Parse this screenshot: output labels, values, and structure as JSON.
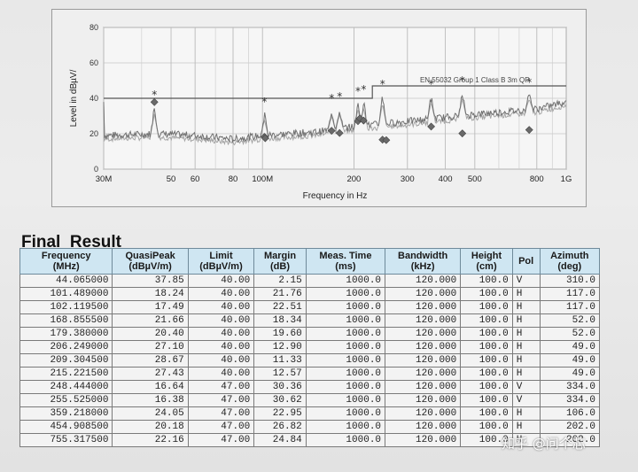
{
  "chart_data": {
    "type": "line",
    "xlabel": "Frequency in Hz",
    "ylabel": "Level in dBµV/",
    "x_scale": "log",
    "xlim": [
      30,
      1000
    ],
    "ylim": [
      0,
      80
    ],
    "y_ticks": [
      "0",
      "20",
      "40",
      "60",
      "80"
    ],
    "x_tick_labels": [
      {
        "label": "30M",
        "mhz": 30
      },
      {
        "label": "50",
        "mhz": 50
      },
      {
        "label": "60",
        "mhz": 60
      },
      {
        "label": "80",
        "mhz": 80
      },
      {
        "label": "100M",
        "mhz": 100
      },
      {
        "label": "200",
        "mhz": 200
      },
      {
        "label": "300",
        "mhz": 300
      },
      {
        "label": "400",
        "mhz": 400
      },
      {
        "label": "500",
        "mhz": 500
      },
      {
        "label": "800",
        "mhz": 800
      },
      {
        "label": "1G",
        "mhz": 1000
      }
    ],
    "limit_label": "EN 55032 Group 1 Class B 3m QP",
    "limit_line": [
      [
        30,
        40
      ],
      [
        230,
        40
      ],
      [
        230,
        47
      ],
      [
        1000,
        47
      ]
    ],
    "grid": true,
    "noise_floor": [
      [
        30,
        19
      ],
      [
        45,
        20
      ],
      [
        60,
        19
      ],
      [
        80,
        17
      ],
      [
        100,
        19
      ],
      [
        150,
        21
      ],
      [
        200,
        24
      ],
      [
        300,
        27
      ],
      [
        500,
        31
      ],
      [
        800,
        34
      ],
      [
        1000,
        38
      ]
    ],
    "peaks": [
      {
        "mhz": 44.065,
        "level": 38
      },
      {
        "mhz": 101.489,
        "level": 34
      },
      {
        "mhz": 168.855,
        "level": 36
      },
      {
        "mhz": 179.38,
        "level": 37
      },
      {
        "mhz": 206.249,
        "level": 40
      },
      {
        "mhz": 215.2215,
        "level": 41
      },
      {
        "mhz": 248.444,
        "level": 44
      },
      {
        "mhz": 359.218,
        "level": 44
      },
      {
        "mhz": 454.9085,
        "level": 46
      },
      {
        "mhz": 755.3175,
        "level": 45
      }
    ]
  },
  "results": {
    "title": "Final_Result",
    "headers": [
      [
        "Frequency",
        "(MHz)"
      ],
      [
        "QuasiPeak",
        "(dBµV/m)"
      ],
      [
        "Limit",
        "(dBµV/m)"
      ],
      [
        "Margin",
        "(dB)"
      ],
      [
        "Meas. Time",
        "(ms)"
      ],
      [
        "Bandwidth",
        "(kHz)"
      ],
      [
        "Height",
        "(cm)"
      ],
      [
        "Pol",
        ""
      ],
      [
        "Azimuth",
        "(deg)"
      ]
    ],
    "rows": [
      [
        "44.065000",
        "37.85",
        "40.00",
        "2.15",
        "1000.0",
        "120.000",
        "100.0",
        "V",
        "310.0"
      ],
      [
        "101.489000",
        "18.24",
        "40.00",
        "21.76",
        "1000.0",
        "120.000",
        "100.0",
        "H",
        "117.0"
      ],
      [
        "102.119500",
        "17.49",
        "40.00",
        "22.51",
        "1000.0",
        "120.000",
        "100.0",
        "H",
        "117.0"
      ],
      [
        "168.855500",
        "21.66",
        "40.00",
        "18.34",
        "1000.0",
        "120.000",
        "100.0",
        "H",
        "52.0"
      ],
      [
        "179.380000",
        "20.40",
        "40.00",
        "19.60",
        "1000.0",
        "120.000",
        "100.0",
        "H",
        "52.0"
      ],
      [
        "206.249000",
        "27.10",
        "40.00",
        "12.90",
        "1000.0",
        "120.000",
        "100.0",
        "H",
        "49.0"
      ],
      [
        "209.304500",
        "28.67",
        "40.00",
        "11.33",
        "1000.0",
        "120.000",
        "100.0",
        "H",
        "49.0"
      ],
      [
        "215.221500",
        "27.43",
        "40.00",
        "12.57",
        "1000.0",
        "120.000",
        "100.0",
        "H",
        "49.0"
      ],
      [
        "248.444000",
        "16.64",
        "47.00",
        "30.36",
        "1000.0",
        "120.000",
        "100.0",
        "V",
        "334.0"
      ],
      [
        "255.525000",
        "16.38",
        "47.00",
        "30.62",
        "1000.0",
        "120.000",
        "100.0",
        "V",
        "334.0"
      ],
      [
        "359.218000",
        "24.05",
        "47.00",
        "22.95",
        "1000.0",
        "120.000",
        "100.0",
        "H",
        "106.0"
      ],
      [
        "454.908500",
        "20.18",
        "47.00",
        "26.82",
        "1000.0",
        "120.000",
        "100.0",
        "H",
        "202.0"
      ],
      [
        "755.317500",
        "22.16",
        "47.00",
        "24.84",
        "1000.0",
        "120.000",
        "100.0",
        "H",
        "202.0"
      ]
    ]
  },
  "watermark": "知乎 @问个芯",
  "colors": {
    "header_bg": "#cfe6f2",
    "trace": "#707070",
    "limit": "#555555",
    "marker": "#6a6a6a"
  }
}
